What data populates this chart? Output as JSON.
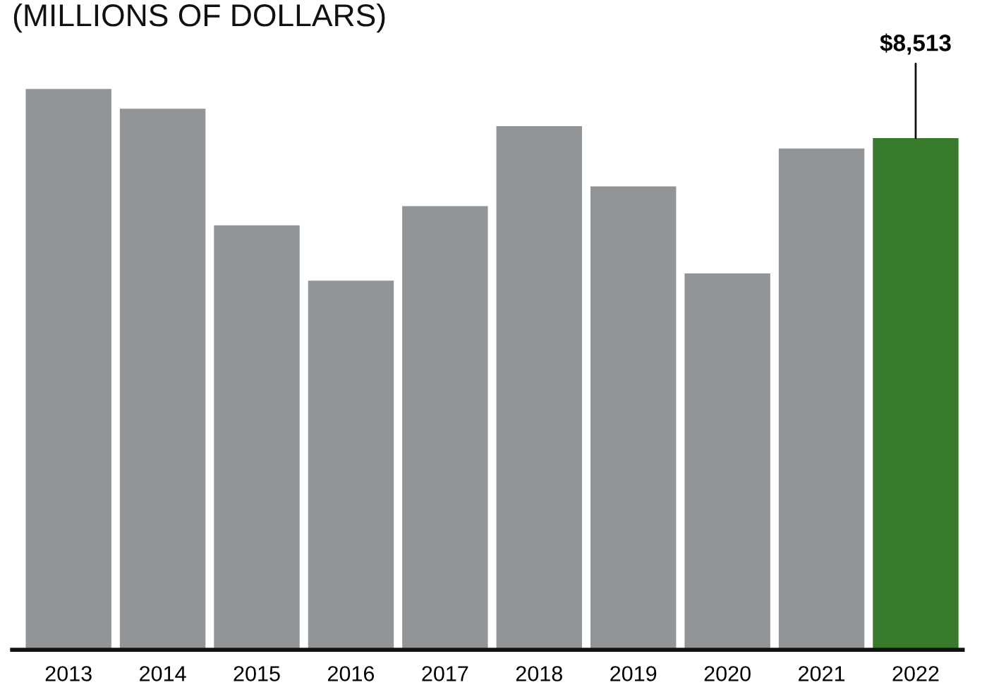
{
  "chart_data": {
    "type": "bar",
    "title": "(MILLIONS OF DOLLARS)",
    "categories": [
      "2013",
      "2014",
      "2015",
      "2016",
      "2017",
      "2018",
      "2019",
      "2020",
      "2021",
      "2022"
    ],
    "values": [
      9330,
      9000,
      7060,
      6140,
      7380,
      8710,
      7710,
      6260,
      8340,
      8513
    ],
    "colors": [
      "#919598",
      "#919598",
      "#919598",
      "#919598",
      "#919598",
      "#919598",
      "#919598",
      "#919598",
      "#919598",
      "#387b2c"
    ],
    "value_labels": [
      null,
      null,
      null,
      null,
      null,
      null,
      null,
      null,
      null,
      "$8,513"
    ],
    "tick_labels": "x",
    "grid": false,
    "legend": false
  }
}
